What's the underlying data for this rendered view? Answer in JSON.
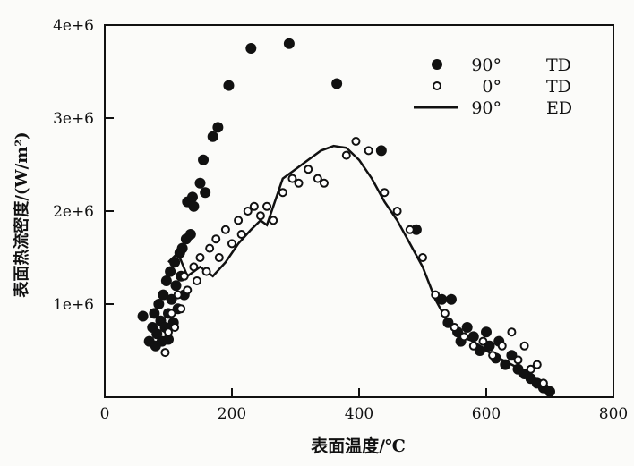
{
  "chart_data": {
    "type": "scatter",
    "title": "",
    "xlabel": "表面温度/℃",
    "ylabel": "表面热流密度/(W/m²)",
    "xlim": [
      0,
      800
    ],
    "ylim": [
      0,
      4000000
    ],
    "xticks": [
      0,
      200,
      400,
      600,
      800
    ],
    "xtick_labels": [
      "0",
      "200",
      "400",
      "600",
      "800"
    ],
    "yticks": [
      1000000,
      2000000,
      3000000,
      4000000
    ],
    "ytick_labels": [
      "1e+6",
      "2e+6",
      "3e+6",
      "4e+6"
    ],
    "grid": false,
    "legend_position": "top-right",
    "series": [
      {
        "name": "90° TD",
        "angle": "90°",
        "method": "TD",
        "marker": "filled-circle",
        "points": [
          [
            60,
            870000
          ],
          [
            70,
            600000
          ],
          [
            75,
            750000
          ],
          [
            78,
            900000
          ],
          [
            80,
            550000
          ],
          [
            82,
            680000
          ],
          [
            85,
            1000000
          ],
          [
            88,
            820000
          ],
          [
            90,
            600000
          ],
          [
            92,
            1100000
          ],
          [
            95,
            750000
          ],
          [
            97,
            1250000
          ],
          [
            100,
            900000
          ],
          [
            100,
            620000
          ],
          [
            103,
            1350000
          ],
          [
            105,
            1050000
          ],
          [
            108,
            800000
          ],
          [
            110,
            1450000
          ],
          [
            112,
            1200000
          ],
          [
            115,
            950000
          ],
          [
            118,
            1550000
          ],
          [
            120,
            1300000
          ],
          [
            122,
            1600000
          ],
          [
            125,
            1100000
          ],
          [
            128,
            1700000
          ],
          [
            130,
            2100000
          ],
          [
            135,
            1750000
          ],
          [
            138,
            2150000
          ],
          [
            140,
            2050000
          ],
          [
            150,
            2300000
          ],
          [
            155,
            2550000
          ],
          [
            158,
            2200000
          ],
          [
            170,
            2800000
          ],
          [
            178,
            2900000
          ],
          [
            195,
            3350000
          ],
          [
            230,
            3750000
          ],
          [
            290,
            3800000
          ],
          [
            365,
            3370000
          ],
          [
            435,
            2650000
          ],
          [
            490,
            1800000
          ],
          [
            530,
            1050000
          ],
          [
            545,
            1050000
          ],
          [
            540,
            800000
          ],
          [
            555,
            700000
          ],
          [
            560,
            600000
          ],
          [
            570,
            750000
          ],
          [
            580,
            650000
          ],
          [
            590,
            500000
          ],
          [
            600,
            700000
          ],
          [
            605,
            550000
          ],
          [
            615,
            420000
          ],
          [
            620,
            600000
          ],
          [
            630,
            350000
          ],
          [
            640,
            450000
          ],
          [
            650,
            300000
          ],
          [
            660,
            250000
          ],
          [
            670,
            200000
          ],
          [
            680,
            150000
          ],
          [
            690,
            100000
          ],
          [
            700,
            60000
          ]
        ]
      },
      {
        "name": "0° TD",
        "angle": "0°",
        "method": "TD",
        "marker": "open-circle",
        "points": [
          [
            95,
            480000
          ],
          [
            100,
            700000
          ],
          [
            105,
            900000
          ],
          [
            110,
            750000
          ],
          [
            115,
            1100000
          ],
          [
            120,
            950000
          ],
          [
            125,
            1300000
          ],
          [
            130,
            1150000
          ],
          [
            140,
            1400000
          ],
          [
            145,
            1250000
          ],
          [
            150,
            1500000
          ],
          [
            160,
            1350000
          ],
          [
            165,
            1600000
          ],
          [
            175,
            1700000
          ],
          [
            180,
            1500000
          ],
          [
            190,
            1800000
          ],
          [
            200,
            1650000
          ],
          [
            210,
            1900000
          ],
          [
            215,
            1750000
          ],
          [
            225,
            2000000
          ],
          [
            235,
            2050000
          ],
          [
            245,
            1950000
          ],
          [
            255,
            2050000
          ],
          [
            265,
            1900000
          ],
          [
            280,
            2200000
          ],
          [
            295,
            2350000
          ],
          [
            305,
            2300000
          ],
          [
            320,
            2450000
          ],
          [
            335,
            2350000
          ],
          [
            345,
            2300000
          ],
          [
            380,
            2600000
          ],
          [
            395,
            2750000
          ],
          [
            415,
            2650000
          ],
          [
            440,
            2200000
          ],
          [
            460,
            2000000
          ],
          [
            480,
            1800000
          ],
          [
            500,
            1500000
          ],
          [
            520,
            1100000
          ],
          [
            535,
            900000
          ],
          [
            550,
            750000
          ],
          [
            565,
            650000
          ],
          [
            580,
            550000
          ],
          [
            595,
            600000
          ],
          [
            610,
            450000
          ],
          [
            625,
            550000
          ],
          [
            640,
            700000
          ],
          [
            650,
            400000
          ],
          [
            660,
            550000
          ],
          [
            670,
            300000
          ],
          [
            680,
            350000
          ],
          [
            690,
            150000
          ]
        ]
      },
      {
        "name": "90° ED",
        "angle": "90°",
        "method": "ED",
        "marker": "line",
        "points": [
          [
            100,
            1450000
          ],
          [
            115,
            1550000
          ],
          [
            130,
            1300000
          ],
          [
            150,
            1400000
          ],
          [
            170,
            1300000
          ],
          [
            190,
            1450000
          ],
          [
            210,
            1650000
          ],
          [
            230,
            1800000
          ],
          [
            245,
            1900000
          ],
          [
            255,
            1850000
          ],
          [
            265,
            2050000
          ],
          [
            280,
            2350000
          ],
          [
            300,
            2450000
          ],
          [
            320,
            2550000
          ],
          [
            340,
            2650000
          ],
          [
            360,
            2700000
          ],
          [
            380,
            2680000
          ],
          [
            400,
            2550000
          ],
          [
            420,
            2350000
          ],
          [
            440,
            2100000
          ],
          [
            460,
            1900000
          ],
          [
            480,
            1650000
          ],
          [
            500,
            1400000
          ],
          [
            520,
            1050000
          ],
          [
            540,
            800000
          ],
          [
            560,
            650000
          ],
          [
            580,
            600000
          ],
          [
            600,
            500000
          ],
          [
            620,
            420000
          ],
          [
            640,
            350000
          ],
          [
            660,
            280000
          ],
          [
            680,
            180000
          ],
          [
            700,
            50000
          ]
        ]
      }
    ]
  }
}
